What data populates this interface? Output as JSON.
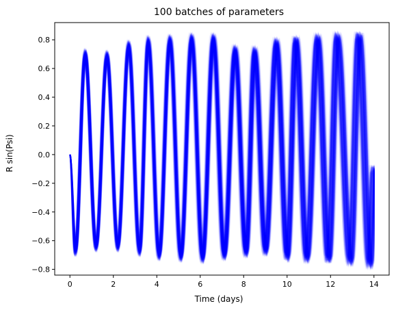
{
  "chart_data": {
    "type": "line",
    "title": "100 batches of parameters",
    "xlabel": "Time (days)",
    "ylabel": "R sin(Psi)",
    "xlim": [
      -0.7,
      14.7
    ],
    "ylim": [
      -0.84,
      0.92
    ],
    "xticks": [
      0,
      2,
      4,
      6,
      8,
      10,
      12,
      14
    ],
    "yticks": [
      -0.8,
      -0.6,
      -0.4,
      -0.2,
      0.0,
      0.2,
      0.4,
      0.6,
      0.8
    ],
    "xtick_labels": [
      "0",
      "2",
      "4",
      "6",
      "8",
      "10",
      "12",
      "14"
    ],
    "ytick_labels": [
      "−0.8",
      "−0.6",
      "−0.4",
      "−0.2",
      "0.0",
      "0.2",
      "0.4",
      "0.6",
      "0.8"
    ],
    "grid": false,
    "legend": "none",
    "series_count": 100,
    "series_color": "#0000ff",
    "series_alpha": 0.08,
    "series_description_values": {
      "t_start": 0,
      "t_end": 14,
      "start_value": 0.0,
      "period_days_range": [
        0.92,
        1.0
      ],
      "peaks": [
        {
          "x": 0.7,
          "y": 0.7
        },
        {
          "x": 1.7,
          "y": 0.69
        },
        {
          "x": 2.7,
          "y": 0.76
        },
        {
          "x": 3.6,
          "y": 0.79
        },
        {
          "x": 4.6,
          "y": 0.8
        },
        {
          "x": 5.6,
          "y": 0.81
        },
        {
          "x": 6.6,
          "y": 0.81
        },
        {
          "x": 7.6,
          "y": 0.73
        },
        {
          "x": 8.5,
          "y": 0.72
        },
        {
          "x": 9.5,
          "y": 0.78
        },
        {
          "x": 10.4,
          "y": 0.8
        },
        {
          "x": 11.4,
          "y": 0.81
        },
        {
          "x": 12.3,
          "y": 0.82
        },
        {
          "x": 13.3,
          "y": 0.83
        }
      ],
      "troughs": [
        {
          "x": 0.25,
          "y": -0.67
        },
        {
          "x": 1.2,
          "y": -0.64
        },
        {
          "x": 2.2,
          "y": -0.64
        },
        {
          "x": 3.2,
          "y": -0.67
        },
        {
          "x": 4.1,
          "y": -0.7
        },
        {
          "x": 5.1,
          "y": -0.71
        },
        {
          "x": 6.1,
          "y": -0.72
        },
        {
          "x": 7.1,
          "y": -0.7
        },
        {
          "x": 8.1,
          "y": -0.68
        },
        {
          "x": 9.0,
          "y": -0.67
        },
        {
          "x": 10.0,
          "y": -0.71
        },
        {
          "x": 10.9,
          "y": -0.72
        },
        {
          "x": 11.9,
          "y": -0.73
        },
        {
          "x": 12.9,
          "y": -0.74
        },
        {
          "x": 13.8,
          "y": -0.76
        }
      ]
    }
  }
}
